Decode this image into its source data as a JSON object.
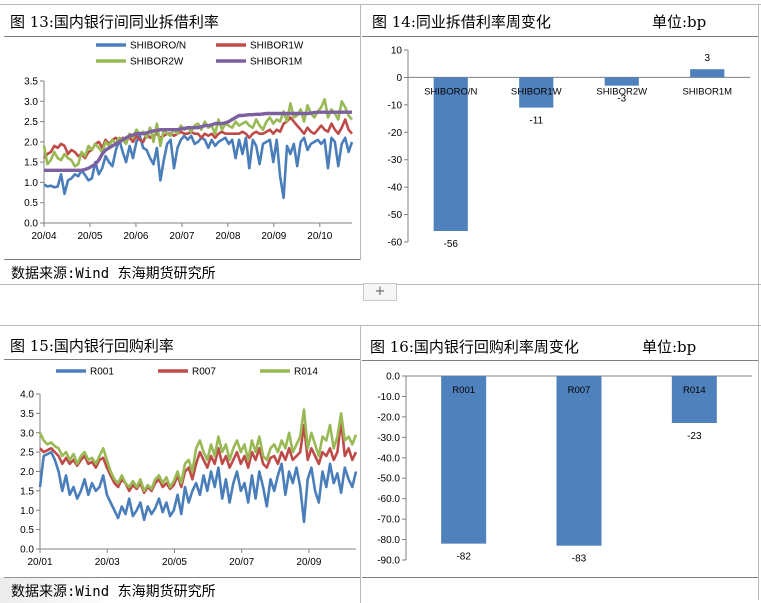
{
  "panels": {
    "p13": {
      "title": "图 13:国内银行间同业拆借利率",
      "source": "数据来源:Wind  东海期货研究所"
    },
    "p14": {
      "title": "图 14:同业拆借利率周变化",
      "unit": "单位:bp"
    },
    "p15": {
      "title": "图 15:国内银行回购利率",
      "source": "数据来源:Wind  东海期货研究所"
    },
    "p16": {
      "title": "图 16:国内银行回购利率周变化",
      "unit": "单位:bp"
    }
  },
  "add_button": "+",
  "chart_data": [
    {
      "id": "shibor",
      "type": "line",
      "x_ticks": [
        "20/04",
        "20/05",
        "20/06",
        "20/07",
        "20/08",
        "20/09",
        "20/10"
      ],
      "yticks": [
        "0.0",
        "0.5",
        "1.0",
        "1.5",
        "2.0",
        "2.5",
        "3.0",
        "3.5"
      ],
      "ylim": [
        0,
        3.5
      ],
      "legend_position": "top",
      "series": [
        {
          "name": "SHIBORO/N",
          "color": "#4a7ebb",
          "values": [
            0.95,
            0.9,
            0.92,
            0.88,
            0.9,
            1.2,
            0.72,
            1.05,
            1.1,
            1.2,
            1.15,
            1.3,
            1.18,
            1.05,
            1.1,
            1.5,
            1.2,
            1.35,
            1.65,
            1.5,
            1.4,
            1.8,
            2.05,
            1.75,
            1.5,
            1.9,
            1.6,
            2.0,
            2.15,
            1.85,
            1.8,
            1.6,
            1.45,
            1.85,
            1.05,
            1.55,
            1.95,
            2.05,
            1.35,
            1.85,
            2.05,
            2.15,
            2.05,
            2.15,
            1.95,
            2.0,
            2.1,
            2.05,
            1.85,
            2.05,
            1.9,
            2.0,
            2.05,
            2.1,
            1.95,
            2.05,
            1.6,
            2.05,
            1.7,
            2.1,
            1.35,
            2.05,
            1.9,
            1.45,
            1.95,
            2.0,
            2.05,
            1.5,
            2.05,
            1.15,
            0.62,
            1.9,
            1.7,
            1.95,
            1.4,
            2.0,
            2.1,
            1.8,
            1.95,
            2.0,
            2.05,
            1.95,
            2.05,
            1.35,
            2.1,
            2.0,
            1.4,
            1.95,
            2.1,
            1.75,
            2.0
          ]
        },
        {
          "name": "SHIBOR1W",
          "color": "#be4b48",
          "values": [
            1.6,
            1.7,
            1.75,
            1.9,
            1.85,
            1.95,
            1.9,
            1.7,
            1.8,
            1.75,
            1.65,
            1.7,
            1.6,
            1.75,
            1.8,
            1.95,
            2.0,
            1.85,
            2.05,
            1.95,
            2.05,
            2.1,
            2.0,
            2.1,
            2.05,
            2.1,
            2.0,
            2.15,
            2.05,
            2.0,
            2.2,
            2.1,
            2.15,
            2.2,
            2.1,
            2.15,
            2.2,
            2.2,
            2.15,
            2.2,
            2.25,
            2.2,
            2.2,
            2.25,
            2.2,
            2.2,
            2.1,
            2.2,
            2.15,
            2.2,
            2.1,
            2.2,
            2.25,
            2.2,
            2.2,
            2.2,
            2.2,
            2.2,
            2.25,
            2.2,
            2.1,
            2.2,
            2.25,
            2.2,
            2.2,
            2.25,
            2.3,
            2.2,
            2.3,
            2.25,
            2.45,
            2.5,
            2.6,
            2.5,
            2.4,
            2.3,
            2.2,
            2.35,
            2.25,
            2.2,
            2.3,
            2.4,
            2.3,
            2.25,
            2.45,
            2.3,
            2.2,
            2.35,
            2.55,
            2.3,
            2.2
          ]
        },
        {
          "name": "SHIBOR2W",
          "color": "#98b954",
          "values": [
            1.9,
            1.45,
            1.55,
            1.75,
            1.6,
            1.55,
            1.7,
            1.6,
            1.55,
            1.4,
            1.45,
            1.75,
            1.65,
            1.9,
            1.8,
            1.95,
            1.85,
            1.75,
            2.0,
            1.9,
            2.05,
            1.95,
            2.1,
            2.05,
            1.95,
            2.2,
            2.1,
            2.3,
            2.2,
            2.25,
            2.1,
            2.35,
            2.0,
            2.45,
            1.9,
            2.3,
            2.2,
            2.15,
            2.3,
            2.2,
            2.4,
            2.3,
            2.35,
            2.25,
            2.4,
            2.45,
            2.3,
            2.5,
            2.35,
            2.4,
            2.2,
            2.55,
            2.3,
            2.45,
            2.4,
            2.35,
            2.5,
            2.4,
            2.45,
            2.5,
            2.4,
            2.35,
            2.55,
            2.4,
            2.3,
            2.5,
            2.6,
            2.45,
            2.55,
            2.5,
            2.75,
            2.5,
            2.95,
            2.6,
            2.65,
            2.8,
            2.5,
            2.9,
            2.7,
            2.6,
            2.75,
            2.85,
            3.05,
            2.6,
            2.8,
            2.7,
            2.55,
            3.0,
            2.85,
            2.65,
            2.55
          ]
        },
        {
          "name": "SHIBOR1M",
          "color": "#7d60a0",
          "values": [
            1.3,
            1.3,
            1.3,
            1.3,
            1.3,
            1.3,
            1.3,
            1.3,
            1.3,
            1.3,
            1.3,
            1.3,
            1.32,
            1.35,
            1.4,
            1.45,
            1.55,
            1.7,
            1.8,
            1.85,
            1.9,
            1.95,
            2.0,
            2.05,
            2.1,
            2.15,
            2.17,
            2.2,
            2.2,
            2.2,
            2.22,
            2.25,
            2.27,
            2.28,
            2.3,
            2.3,
            2.3,
            2.3,
            2.3,
            2.3,
            2.32,
            2.33,
            2.35,
            2.35,
            2.35,
            2.35,
            2.37,
            2.4,
            2.4,
            2.42,
            2.45,
            2.45,
            2.45,
            2.47,
            2.5,
            2.55,
            2.6,
            2.65,
            2.65,
            2.66,
            2.67,
            2.67,
            2.68,
            2.68,
            2.69,
            2.7,
            2.7,
            2.7,
            2.7,
            2.7,
            2.7,
            2.7,
            2.7,
            2.7,
            2.7,
            2.7,
            2.7,
            2.7,
            2.71,
            2.72,
            2.73,
            2.73,
            2.73,
            2.73,
            2.73,
            2.73,
            2.73,
            2.73,
            2.73,
            2.73,
            2.73
          ]
        }
      ]
    },
    {
      "id": "shibor_change",
      "type": "bar",
      "categories": [
        "SHIBORO/N",
        "SHIBOR1W",
        "SHIBOR2W",
        "SHIBOR1M"
      ],
      "values": [
        -56,
        -11,
        -3,
        3
      ],
      "value_labels": [
        "-56",
        "-11",
        "-3",
        "3"
      ],
      "yticks": [
        "10",
        "0",
        "-10",
        "-20",
        "-30",
        "-40",
        "-50",
        "-60"
      ],
      "ylim": [
        -60,
        10
      ],
      "color": "#4f81bd"
    },
    {
      "id": "repo",
      "type": "line",
      "x_ticks": [
        "20/01",
        "20/03",
        "20/05",
        "20/07",
        "20/09"
      ],
      "yticks": [
        "0.0",
        "0.5",
        "1.0",
        "1.5",
        "2.0",
        "2.5",
        "3.0",
        "3.5",
        "4.0"
      ],
      "ylim": [
        0,
        4.0
      ],
      "legend_position": "top",
      "series": [
        {
          "name": "R001",
          "color": "#4a7ebb",
          "values": [
            1.6,
            2.4,
            2.45,
            2.5,
            2.3,
            2.0,
            1.5,
            1.9,
            1.4,
            1.6,
            1.3,
            1.5,
            1.8,
            1.4,
            1.7,
            1.5,
            1.6,
            1.9,
            1.4,
            1.2,
            1.0,
            0.8,
            1.1,
            0.9,
            1.3,
            0.85,
            1.0,
            1.2,
            0.75,
            1.1,
            0.9,
            1.05,
            1.3,
            0.95,
            1.2,
            0.85,
            1.0,
            1.4,
            0.9,
            1.6,
            1.2,
            1.5,
            1.7,
            1.4,
            1.9,
            1.5,
            2.0,
            1.6,
            2.1,
            1.3,
            1.8,
            1.2,
            1.7,
            2.0,
            1.5,
            1.7,
            1.2,
            1.9,
            1.3,
            2.0,
            1.6,
            1.1,
            1.8,
            1.5,
            1.9,
            2.2,
            1.4,
            2.0,
            1.7,
            2.1,
            1.6,
            0.7,
            1.8,
            2.1,
            1.5,
            1.2,
            2.0,
            1.6,
            2.2,
            1.7,
            1.95,
            1.45,
            2.1,
            1.8,
            1.6,
            2.0
          ]
        },
        {
          "name": "R007",
          "color": "#be4b48",
          "values": [
            2.6,
            2.5,
            2.55,
            2.6,
            2.5,
            2.4,
            2.2,
            2.35,
            2.2,
            2.3,
            2.15,
            2.3,
            2.4,
            2.2,
            2.25,
            2.1,
            2.3,
            2.35,
            2.1,
            1.9,
            1.7,
            1.6,
            1.8,
            1.7,
            1.5,
            1.65,
            1.55,
            1.7,
            1.45,
            1.6,
            1.5,
            1.7,
            1.8,
            1.6,
            1.7,
            1.55,
            1.65,
            1.9,
            1.6,
            2.0,
            2.1,
            1.8,
            2.2,
            2.5,
            2.3,
            2.1,
            2.4,
            2.2,
            2.6,
            2.2,
            2.4,
            2.1,
            2.3,
            2.5,
            2.2,
            2.4,
            2.1,
            2.5,
            2.3,
            2.6,
            2.2,
            2.1,
            2.35,
            2.4,
            2.2,
            2.5,
            2.3,
            2.6,
            2.3,
            2.4,
            2.5,
            3.2,
            2.3,
            2.6,
            2.4,
            2.2,
            2.5,
            2.4,
            2.6,
            2.3,
            2.5,
            3.3,
            2.4,
            2.6,
            2.3,
            2.5
          ]
        },
        {
          "name": "R014",
          "color": "#98b954",
          "values": [
            3.0,
            2.8,
            2.7,
            2.75,
            2.65,
            2.6,
            2.4,
            2.5,
            2.3,
            2.45,
            2.2,
            2.4,
            2.5,
            2.3,
            2.35,
            2.2,
            2.4,
            2.6,
            2.3,
            2.0,
            1.8,
            1.7,
            1.9,
            1.7,
            1.6,
            1.75,
            1.6,
            1.8,
            1.5,
            1.65,
            1.55,
            1.8,
            1.9,
            1.7,
            1.85,
            1.6,
            1.75,
            2.0,
            1.7,
            2.2,
            2.3,
            2.0,
            2.6,
            2.8,
            2.5,
            2.3,
            2.7,
            2.4,
            2.9,
            2.5,
            2.7,
            2.3,
            2.6,
            2.8,
            2.5,
            2.7,
            2.3,
            2.8,
            2.5,
            2.9,
            2.4,
            2.3,
            2.6,
            2.7,
            2.5,
            2.8,
            2.6,
            3.0,
            2.5,
            2.7,
            2.9,
            3.6,
            2.6,
            3.0,
            2.7,
            2.4,
            2.9,
            2.8,
            3.2,
            2.6,
            2.9,
            3.5,
            2.8,
            2.9,
            2.7,
            2.95
          ]
        }
      ]
    },
    {
      "id": "repo_change",
      "type": "bar",
      "categories": [
        "R001",
        "R007",
        "R014"
      ],
      "values": [
        -82,
        -83,
        -23
      ],
      "value_labels": [
        "-82",
        "-83",
        "-23"
      ],
      "yticks": [
        "0.0",
        "-10.0",
        "-20.0",
        "-30.0",
        "-40.0",
        "-50.0",
        "-60.0",
        "-70.0",
        "-80.0",
        "-90.0"
      ],
      "ylim": [
        -90,
        0
      ],
      "color": "#4f81bd"
    }
  ]
}
